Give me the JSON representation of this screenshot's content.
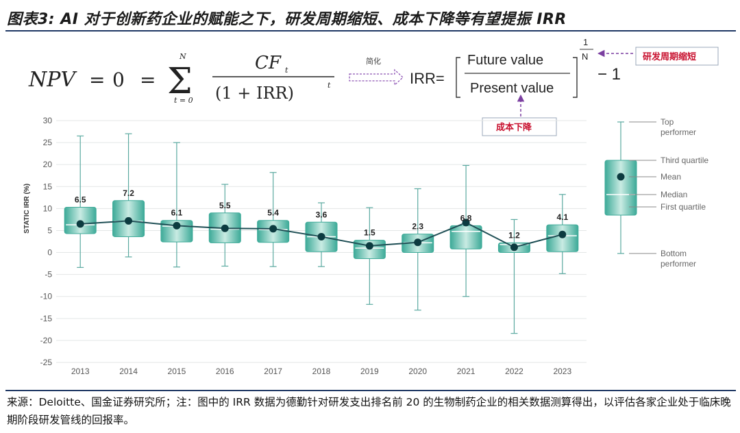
{
  "title": "图表3: AI 对于创新药企业的赋能之下，研发周期缩短、成本下降等有望提振 IRR",
  "formula": {
    "npv": "NPV",
    "equals": "=",
    "zero": "0",
    "sum_upper": "N",
    "sum_lower": "t = 0",
    "numerator": "CF",
    "numerator_sub": "t",
    "denominator": "(1 + IRR)",
    "denominator_sup": "t",
    "simplify_label": "简化",
    "irr_prefix": "IRR=",
    "future_value": "Future value",
    "present_value": "Present value",
    "exponent_num": "1",
    "exponent_den": "N",
    "minus_one": "− 1",
    "annotation_cycle": "研发周期缩短",
    "annotation_cost": "成本下降"
  },
  "chart_data": {
    "type": "boxplot",
    "ylabel": "STATIC IRR (%)",
    "ylim": [
      -25,
      30
    ],
    "yticks": [
      30,
      25,
      20,
      15,
      10,
      5,
      0,
      -5,
      -10,
      -15,
      -20,
      -25
    ],
    "grid": true,
    "categories": [
      "2013",
      "2014",
      "2015",
      "2016",
      "2017",
      "2018",
      "2019",
      "2020",
      "2021",
      "2022",
      "2023"
    ],
    "series": [
      {
        "name": "Top performer",
        "values": [
          26.5,
          27.0,
          25.0,
          15.5,
          18.2,
          11.3,
          10.2,
          14.5,
          19.8,
          7.5,
          13.2
        ]
      },
      {
        "name": "Third quartile",
        "values": [
          10.3,
          11.8,
          7.3,
          9.0,
          7.3,
          6.9,
          2.8,
          4.2,
          6.1,
          2.2,
          6.3
        ]
      },
      {
        "name": "Median",
        "values": [
          6.3,
          7.1,
          6.0,
          5.3,
          5.2,
          3.6,
          1.0,
          2.2,
          4.8,
          1.8,
          3.8
        ]
      },
      {
        "name": "First quartile",
        "values": [
          4.3,
          3.6,
          2.4,
          2.2,
          2.3,
          0.2,
          -1.4,
          0.0,
          0.8,
          0.0,
          0.2
        ]
      },
      {
        "name": "Bottom performer",
        "values": [
          -3.4,
          -1.0,
          -3.3,
          -3.1,
          -3.2,
          -3.2,
          -11.8,
          -13.1,
          -10.0,
          -18.4,
          -4.8
        ]
      },
      {
        "name": "Mean",
        "values": [
          6.5,
          7.2,
          6.1,
          5.5,
          5.4,
          3.6,
          1.5,
          2.3,
          6.8,
          1.2,
          4.1
        ]
      }
    ],
    "data_labels": [
      "6.5",
      "7.2",
      "6.1",
      "5.5",
      "5.4",
      "3.6",
      "1.5",
      "2.3",
      "6.8",
      "1.2",
      "4.1"
    ],
    "legend": {
      "position": "right",
      "items": [
        "Top performer",
        "Third quartile",
        "Mean",
        "Median",
        "First quartile",
        "Bottom performer"
      ]
    },
    "colors": {
      "box": "#3daa98",
      "box_light": "#b7e0d7",
      "whisker": "#5aa9a0",
      "line": "#1f4f55",
      "mean": "#0c3b40",
      "grid": "#e3e6e6",
      "axis_text": "#555555"
    }
  },
  "source": "来源：Deloitte、国金证券研究所；注：图中的 IRR 数据为德勤针对研发支出排名前 20 的生物制药企业的相关数据测算得出，以评估各家企业处于临床晚期阶段研发管线的回报率。"
}
